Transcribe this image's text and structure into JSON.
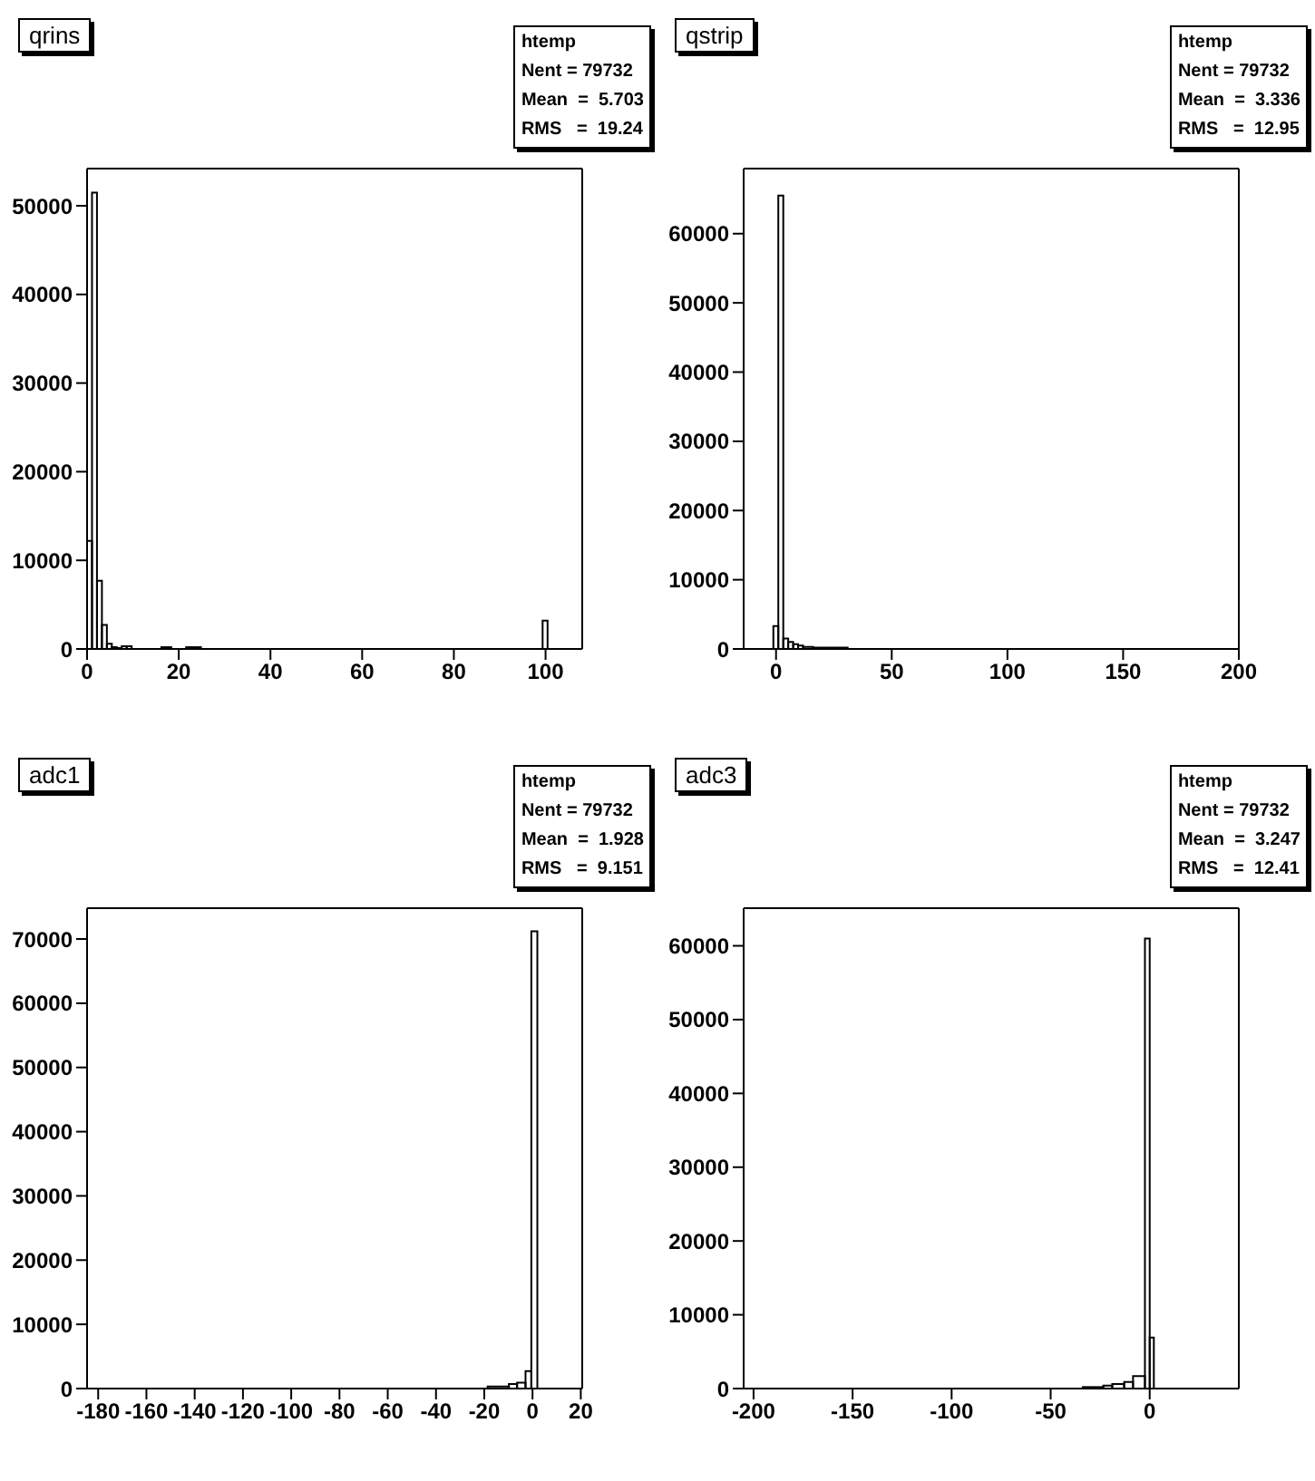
{
  "chart_data": [
    {
      "type": "histogram",
      "title": "qrins",
      "annotations": [
        "htemp",
        "Nent = 79732",
        "Mean  =  5.703",
        "RMS   =  19.24"
      ],
      "bins": [
        0,
        1.08,
        2.16,
        3.24,
        4.32,
        5.4,
        6.48,
        7.56,
        8.64,
        9.72,
        16.2,
        18.36,
        21.6,
        24.84,
        99.36,
        100.44
      ],
      "values": [
        12200,
        51500,
        7700,
        2700,
        600,
        200,
        100,
        300,
        300,
        0,
        200,
        0,
        200,
        0,
        3200
      ],
      "color": "#000000",
      "xlim": [
        0,
        108
      ],
      "xticks": [
        0,
        20,
        40,
        60,
        80,
        100
      ],
      "ylim": [
        0,
        54200
      ],
      "yticks": [
        0,
        10000,
        20000,
        30000,
        40000,
        50000
      ],
      "grid": false
    },
    {
      "type": "histogram",
      "title": "qstrip",
      "annotations": [
        "htemp",
        "Nent = 79732",
        "Mean  =  3.336",
        "RMS   =  12.95"
      ],
      "bins": [
        -1.16,
        0.98,
        3.12,
        5.26,
        7.4,
        9.54,
        11.68,
        15.96,
        30.94
      ],
      "values": [
        3300,
        65500,
        1500,
        1000,
        700,
        500,
        300,
        200
      ],
      "color": "#000000",
      "xlim": [
        -14,
        200
      ],
      "xticks": [
        0,
        50,
        100,
        150,
        200
      ],
      "ylim": [
        0,
        69400
      ],
      "yticks": [
        0,
        10000,
        20000,
        30000,
        40000,
        50000,
        60000
      ],
      "grid": false
    },
    {
      "type": "histogram",
      "title": "adc1",
      "annotations": [
        "htemp",
        "Nent = 79732",
        "Mean  =  1.928",
        "RMS   =  9.151"
      ],
      "bins": [
        -18.6,
        -9.8,
        -6.4,
        -2.9,
        -0.5,
        2
      ],
      "values": [
        300,
        700,
        900,
        2700,
        71200
      ],
      "color": "#000000",
      "xlim": [
        -184.6,
        20.6
      ],
      "xticks": [
        -180,
        -160,
        -140,
        -120,
        -100,
        -80,
        -60,
        -40,
        -20,
        0,
        20
      ],
      "ylim": [
        0,
        74800
      ],
      "yticks": [
        0,
        10000,
        20000,
        30000,
        40000,
        50000,
        60000,
        70000
      ],
      "grid": false
    },
    {
      "type": "histogram",
      "title": "adc3",
      "annotations": [
        "htemp",
        "Nent = 79732",
        "Mean  =  3.247",
        "RMS   =  12.41"
      ],
      "bins": [
        -33.8,
        -23.4,
        -18.9,
        -12.9,
        -8.4,
        -2.4,
        0,
        2.1
      ],
      "values": [
        200,
        400,
        600,
        900,
        1700,
        61000,
        6900
      ],
      "color": "#000000",
      "xlim": [
        -205,
        45
      ],
      "xticks": [
        -200,
        -150,
        -100,
        -50,
        0
      ],
      "ylim": [
        0,
        65100
      ],
      "yticks": [
        0,
        10000,
        20000,
        30000,
        40000,
        50000,
        60000
      ],
      "grid": false
    }
  ]
}
